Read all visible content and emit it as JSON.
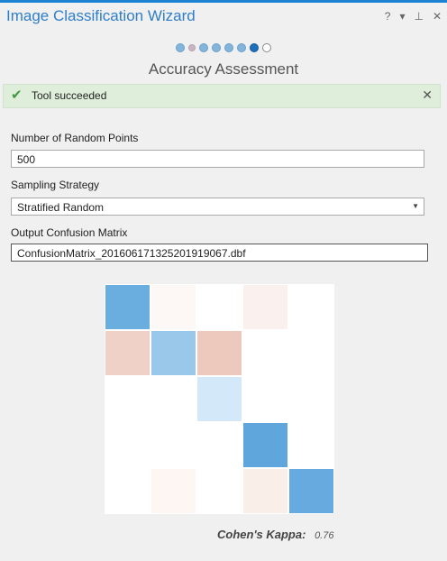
{
  "window": {
    "title": "Image Classification Wizard",
    "help_glyph": "?",
    "menu_glyph": "▾",
    "pin_glyph": "⊥",
    "close_glyph": "✕"
  },
  "steps": {
    "dots": [
      "done",
      "small",
      "done",
      "done",
      "done",
      "done",
      "current",
      "todo"
    ],
    "current_title": "Accuracy Assessment"
  },
  "banner": {
    "icon": "check-icon",
    "message": "Tool succeeded",
    "color": "#dfeedb"
  },
  "form": {
    "random_points": {
      "label": "Number of Random Points",
      "value": "500"
    },
    "sampling": {
      "label": "Sampling Strategy",
      "value": "Stratified Random"
    },
    "output": {
      "label": "Output Confusion Matrix",
      "value": "ConfusionMatrix_20160617132520191906­7.dbf"
    }
  },
  "matrix": {
    "size": 5,
    "colors": [
      [
        "#6aaddf",
        "#fdf7f5",
        "#ffffff",
        "#faf0ee",
        "#ffffff"
      ],
      [
        "#efd1c8",
        "#99c8eb",
        "#edc9bd",
        "#ffffff",
        "#ffffff"
      ],
      [
        "#ffffff",
        "#ffffff",
        "#d3e8f9",
        "#ffffff",
        "#ffffff"
      ],
      [
        "#ffffff",
        "#ffffff",
        "#ffffff",
        "#5fa6dd",
        "#ffffff"
      ],
      [
        "#ffffff",
        "#fdf6f3",
        "#ffffff",
        "#faeee9",
        "#66aadf"
      ]
    ]
  },
  "kappa": {
    "label": "Cohen's Kappa:",
    "value": "0.76"
  }
}
